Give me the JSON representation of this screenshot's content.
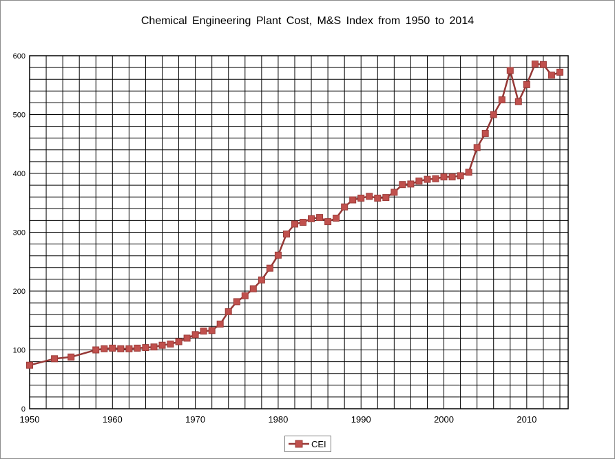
{
  "chart_data": {
    "type": "line",
    "title": "Chemical Engineering Plant Cost, M&S Index from 1950 to 2014",
    "xlabel": "",
    "ylabel": "",
    "xlim": [
      1950,
      2015
    ],
    "ylim": [
      0,
      600
    ],
    "x_ticks": [
      1950,
      1960,
      1970,
      1980,
      1990,
      2000,
      2010
    ],
    "y_ticks": [
      0,
      100,
      200,
      300,
      400,
      500,
      600
    ],
    "grid": true,
    "legend_position": "bottom-center",
    "series": [
      {
        "name": "CEI",
        "color": "#c0504d",
        "line_color": "#953735",
        "x": [
          1950,
          1953,
          1955,
          1958,
          1959,
          1960,
          1961,
          1962,
          1963,
          1964,
          1965,
          1966,
          1967,
          1968,
          1969,
          1970,
          1971,
          1972,
          1973,
          1974,
          1975,
          1976,
          1977,
          1978,
          1979,
          1980,
          1981,
          1982,
          1983,
          1984,
          1985,
          1986,
          1987,
          1988,
          1989,
          1990,
          1991,
          1992,
          1993,
          1994,
          1995,
          1996,
          1997,
          1998,
          1999,
          2000,
          2001,
          2002,
          2003,
          2004,
          2005,
          2006,
          2007,
          2008,
          2009,
          2010,
          2011,
          2012,
          2013,
          2014
        ],
        "y": [
          74,
          85,
          88,
          100,
          102,
          103,
          102,
          102,
          103,
          104,
          105,
          108,
          110,
          114,
          120,
          126,
          132,
          133,
          144,
          165,
          182,
          192,
          204,
          219,
          239,
          261,
          297,
          314,
          317,
          323,
          325,
          318,
          324,
          343,
          355,
          358,
          361,
          358,
          359,
          368,
          381,
          382,
          387,
          390,
          391,
          394,
          394,
          396,
          402,
          444,
          468,
          500,
          525,
          575,
          522,
          551,
          586,
          585,
          567,
          572
        ]
      }
    ]
  }
}
